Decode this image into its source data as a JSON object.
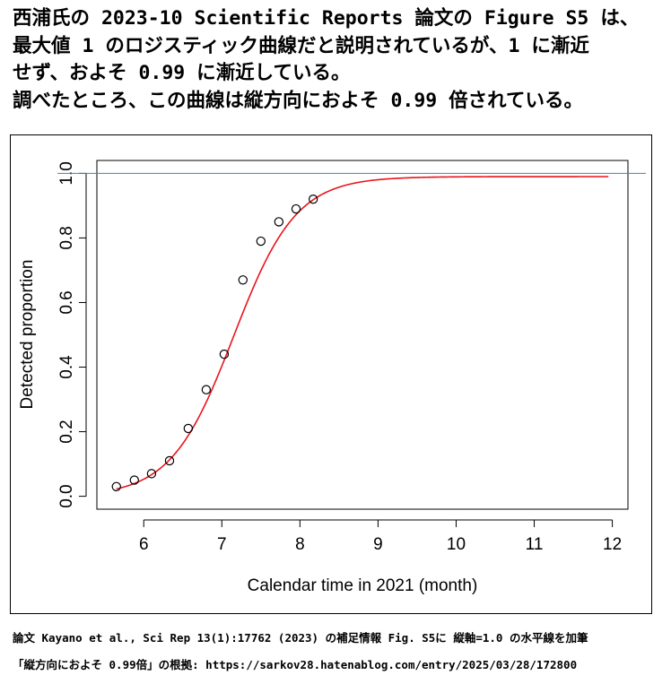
{
  "heading": {
    "lines": [
      "西浦氏の 2023-10 Scientific Reports 論文の Figure S5 は、",
      "最大値 1 のロジスティック曲線だと説明されているが、1 に漸近",
      "せず、およそ 0.99 に漸近している。",
      "調べたところ、この曲線は縦方向におよそ 0.99 倍されている。"
    ]
  },
  "footer": {
    "source": "論文 Kayano et al., Sci Rep 13(1):17762 (2023) の補足情報 Fig. S5に 縦軸=1.0 の水平線を加筆",
    "basis": "「縦方向におよそ 0.99倍」の根拠: https://sarkov28.hatenablog.com/entry/2025/03/28/172800"
  },
  "colors": {
    "curve": "#e8141c",
    "reference_line": "#4f7f99",
    "points": "#000000"
  },
  "chart_data": {
    "type": "scatter",
    "xlabel": "Calendar time in 2021 (month)",
    "ylabel": "Detected proportion",
    "xlim": [
      5.4,
      12.2
    ],
    "ylim": [
      -0.04,
      1.04
    ],
    "xticks": [
      6,
      7,
      8,
      9,
      10,
      11,
      12
    ],
    "yticks": [
      0.0,
      0.2,
      0.4,
      0.6,
      0.8,
      1.0
    ],
    "xtick_labels": [
      "6",
      "7",
      "8",
      "9",
      "10",
      "11",
      "12"
    ],
    "ytick_labels": [
      "0.0",
      "0.2",
      "0.4",
      "0.6",
      "0.8",
      "1.0"
    ],
    "points": {
      "x": [
        5.65,
        5.88,
        6.1,
        6.33,
        6.57,
        6.8,
        7.03,
        7.27,
        7.5,
        7.73,
        7.95,
        8.17
      ],
      "y": [
        0.03,
        0.05,
        0.07,
        0.11,
        0.21,
        0.33,
        0.44,
        0.67,
        0.79,
        0.85,
        0.89,
        0.92
      ]
    },
    "fitted_curve": {
      "type": "logistic",
      "asymptote": 0.99,
      "midpoint": 7.15,
      "rate": 2.5,
      "x_range": [
        5.65,
        11.95
      ]
    },
    "reference_line": {
      "y": 1.0
    },
    "grid": false,
    "legend": "none"
  }
}
